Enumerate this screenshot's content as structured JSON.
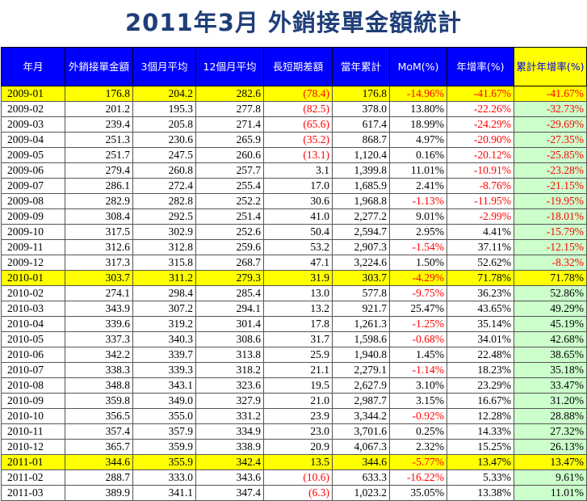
{
  "title": "2011年3月 外銷接單金額統計",
  "headers": [
    "年月",
    "外銷接單金額",
    "3個月平均",
    "12個月平均",
    "長短期差額",
    "當年累計",
    "MoM(%)",
    "年增率(%)",
    "累計年增率(%)"
  ],
  "colors": {
    "header_bg": "#0000ff",
    "highlight_row": "#ffff00",
    "cumulative_col": "#ccffcc",
    "negative_text": "#ff0000",
    "title": "#1f3f7a"
  },
  "rows": [
    [
      "2009-01",
      "176.8",
      "204.2",
      "282.6",
      "(78.4)",
      "176.8",
      "-14.96%",
      "-41.67%",
      "-41.67%"
    ],
    [
      "2009-02",
      "201.2",
      "195.3",
      "277.8",
      "(82.5)",
      "378.0",
      "13.80%",
      "-22.26%",
      "-32.73%"
    ],
    [
      "2009-03",
      "239.4",
      "205.8",
      "271.4",
      "(65.6)",
      "617.4",
      "18.99%",
      "-24.29%",
      "-29.69%"
    ],
    [
      "2009-04",
      "251.3",
      "230.6",
      "265.9",
      "(35.2)",
      "868.7",
      "4.97%",
      "-20.90%",
      "-27.35%"
    ],
    [
      "2009-05",
      "251.7",
      "247.5",
      "260.6",
      "(13.1)",
      "1,120.4",
      "0.16%",
      "-20.12%",
      "-25.85%"
    ],
    [
      "2009-06",
      "279.4",
      "260.8",
      "257.7",
      "3.1",
      "1,399.8",
      "11.01%",
      "-10.91%",
      "-23.28%"
    ],
    [
      "2009-07",
      "286.1",
      "272.4",
      "255.4",
      "17.0",
      "1,685.9",
      "2.41%",
      "-8.76%",
      "-21.15%"
    ],
    [
      "2009-08",
      "282.9",
      "282.8",
      "252.2",
      "30.6",
      "1,968.8",
      "-1.13%",
      "-11.95%",
      "-19.95%"
    ],
    [
      "2009-09",
      "308.4",
      "292.5",
      "251.4",
      "41.0",
      "2,277.2",
      "9.01%",
      "-2.99%",
      "-18.01%"
    ],
    [
      "2009-10",
      "317.5",
      "302.9",
      "252.6",
      "50.4",
      "2,594.7",
      "2.95%",
      "4.41%",
      "-15.79%"
    ],
    [
      "2009-11",
      "312.6",
      "312.8",
      "259.6",
      "53.2",
      "2,907.3",
      "-1.54%",
      "37.11%",
      "-12.15%"
    ],
    [
      "2009-12",
      "317.3",
      "315.8",
      "268.7",
      "47.1",
      "3,224.6",
      "1.50%",
      "52.62%",
      "-8.32%"
    ],
    [
      "2010-01",
      "303.7",
      "311.2",
      "279.3",
      "31.9",
      "303.7",
      "-4.29%",
      "71.78%",
      "71.78%"
    ],
    [
      "2010-02",
      "274.1",
      "298.4",
      "285.4",
      "13.0",
      "577.8",
      "-9.75%",
      "36.23%",
      "52.86%"
    ],
    [
      "2010-03",
      "343.9",
      "307.2",
      "294.1",
      "13.2",
      "921.7",
      "25.47%",
      "43.65%",
      "49.29%"
    ],
    [
      "2010-04",
      "339.6",
      "319.2",
      "301.4",
      "17.8",
      "1,261.3",
      "-1.25%",
      "35.14%",
      "45.19%"
    ],
    [
      "2010-05",
      "337.3",
      "340.3",
      "308.6",
      "31.7",
      "1,598.6",
      "-0.68%",
      "34.01%",
      "42.68%"
    ],
    [
      "2010-06",
      "342.2",
      "339.7",
      "313.8",
      "25.9",
      "1,940.8",
      "1.45%",
      "22.48%",
      "38.65%"
    ],
    [
      "2010-07",
      "338.3",
      "339.3",
      "318.2",
      "21.1",
      "2,279.1",
      "-1.14%",
      "18.23%",
      "35.18%"
    ],
    [
      "2010-08",
      "348.8",
      "343.1",
      "323.6",
      "19.5",
      "2,627.9",
      "3.10%",
      "23.29%",
      "33.47%"
    ],
    [
      "2010-09",
      "359.8",
      "349.0",
      "327.9",
      "21.0",
      "2,987.7",
      "3.15%",
      "16.67%",
      "31.20%"
    ],
    [
      "2010-10",
      "356.5",
      "355.0",
      "331.2",
      "23.9",
      "3,344.2",
      "-0.92%",
      "12.28%",
      "28.88%"
    ],
    [
      "2010-11",
      "357.4",
      "357.9",
      "334.9",
      "23.0",
      "3,701.6",
      "0.25%",
      "14.33%",
      "27.32%"
    ],
    [
      "2010-12",
      "365.7",
      "359.9",
      "338.9",
      "20.9",
      "4,067.3",
      "2.32%",
      "15.25%",
      "26.13%"
    ],
    [
      "2011-01",
      "344.6",
      "355.9",
      "342.4",
      "13.5",
      "344.6",
      "-5.77%",
      "13.47%",
      "13.47%"
    ],
    [
      "2011-02",
      "288.7",
      "333.0",
      "343.6",
      "(10.6)",
      "633.3",
      "-16.22%",
      "5.33%",
      "9.61%"
    ],
    [
      "2011-03",
      "389.9",
      "341.1",
      "347.4",
      "(6.3)",
      "1,023.2",
      "35.05%",
      "13.38%",
      "11.01%"
    ]
  ],
  "highlighted_rows": [
    "2009-01",
    "2010-01",
    "2011-01"
  ]
}
